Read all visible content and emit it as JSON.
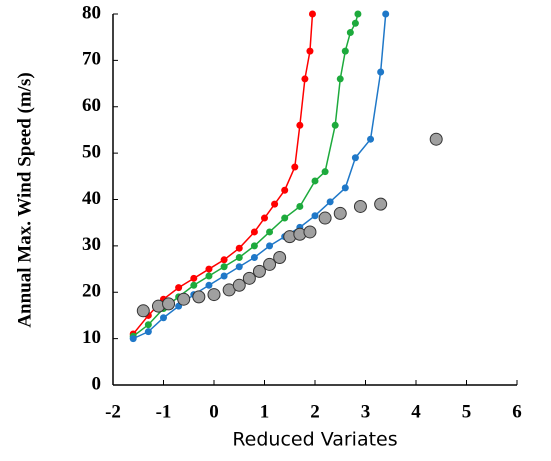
{
  "chart_data": {
    "type": "line",
    "x_label": "Reduced Variates",
    "y_label": "Annual Max. Wind Speed (m/s)",
    "xlim": [
      -2,
      6
    ],
    "xticks": [
      -2,
      -1,
      0,
      1,
      2,
      3,
      4,
      5,
      6
    ],
    "ylim": [
      0,
      80
    ],
    "yticks": [
      0,
      10,
      20,
      30,
      40,
      50,
      60,
      70,
      80
    ],
    "series": [
      {
        "color": "#ff0000",
        "mode": "line",
        "x": [
          -1.6,
          -1.3,
          -1.0,
          -0.7,
          -0.4,
          -0.1,
          0.2,
          0.5,
          0.8,
          1.0,
          1.2,
          1.4,
          1.6,
          1.7,
          1.8,
          1.9,
          1.95
        ],
        "values": [
          11,
          15,
          18.5,
          21,
          23,
          25,
          27,
          29.5,
          33,
          36,
          39,
          42,
          47,
          56,
          66,
          72,
          80
        ]
      },
      {
        "color": "#1daa3c",
        "mode": "line",
        "x": [
          -1.6,
          -1.3,
          -1.0,
          -0.7,
          -0.4,
          -0.1,
          0.2,
          0.5,
          0.8,
          1.1,
          1.4,
          1.7,
          2.0,
          2.2,
          2.4,
          2.5,
          2.6,
          2.7,
          2.8,
          2.85
        ],
        "values": [
          10.5,
          13,
          16.5,
          19,
          21.5,
          23.5,
          25.5,
          27.5,
          30,
          33,
          36,
          38.5,
          44,
          46,
          56,
          66,
          72,
          76,
          78,
          80
        ]
      },
      {
        "color": "#1f78c8",
        "mode": "line",
        "x": [
          -1.6,
          -1.3,
          -1.0,
          -0.7,
          -0.4,
          -0.1,
          0.2,
          0.5,
          0.8,
          1.1,
          1.4,
          1.7,
          2.0,
          2.3,
          2.6,
          2.8,
          3.1,
          3.3,
          3.4
        ],
        "values": [
          10,
          11.5,
          14.5,
          17,
          19.5,
          21.5,
          23.5,
          25.5,
          27.5,
          30,
          32,
          34,
          36.5,
          39.5,
          42.5,
          49,
          53,
          67.5,
          80
        ]
      },
      {
        "color": "#a0a0a0",
        "mode": "markers",
        "x": [
          -1.4,
          -1.1,
          -0.9,
          -0.6,
          -0.3,
          0,
          0.3,
          0.5,
          0.7,
          0.9,
          1.1,
          1.3,
          1.5,
          1.7,
          1.9,
          2.2,
          2.5,
          2.9,
          3.3,
          4.4
        ],
        "values": [
          16,
          17,
          17.5,
          18.5,
          19,
          19.5,
          20.5,
          21.5,
          23,
          24.5,
          26,
          27.5,
          32,
          32.5,
          33,
          36,
          37,
          38.5,
          39,
          53
        ]
      }
    ]
  }
}
